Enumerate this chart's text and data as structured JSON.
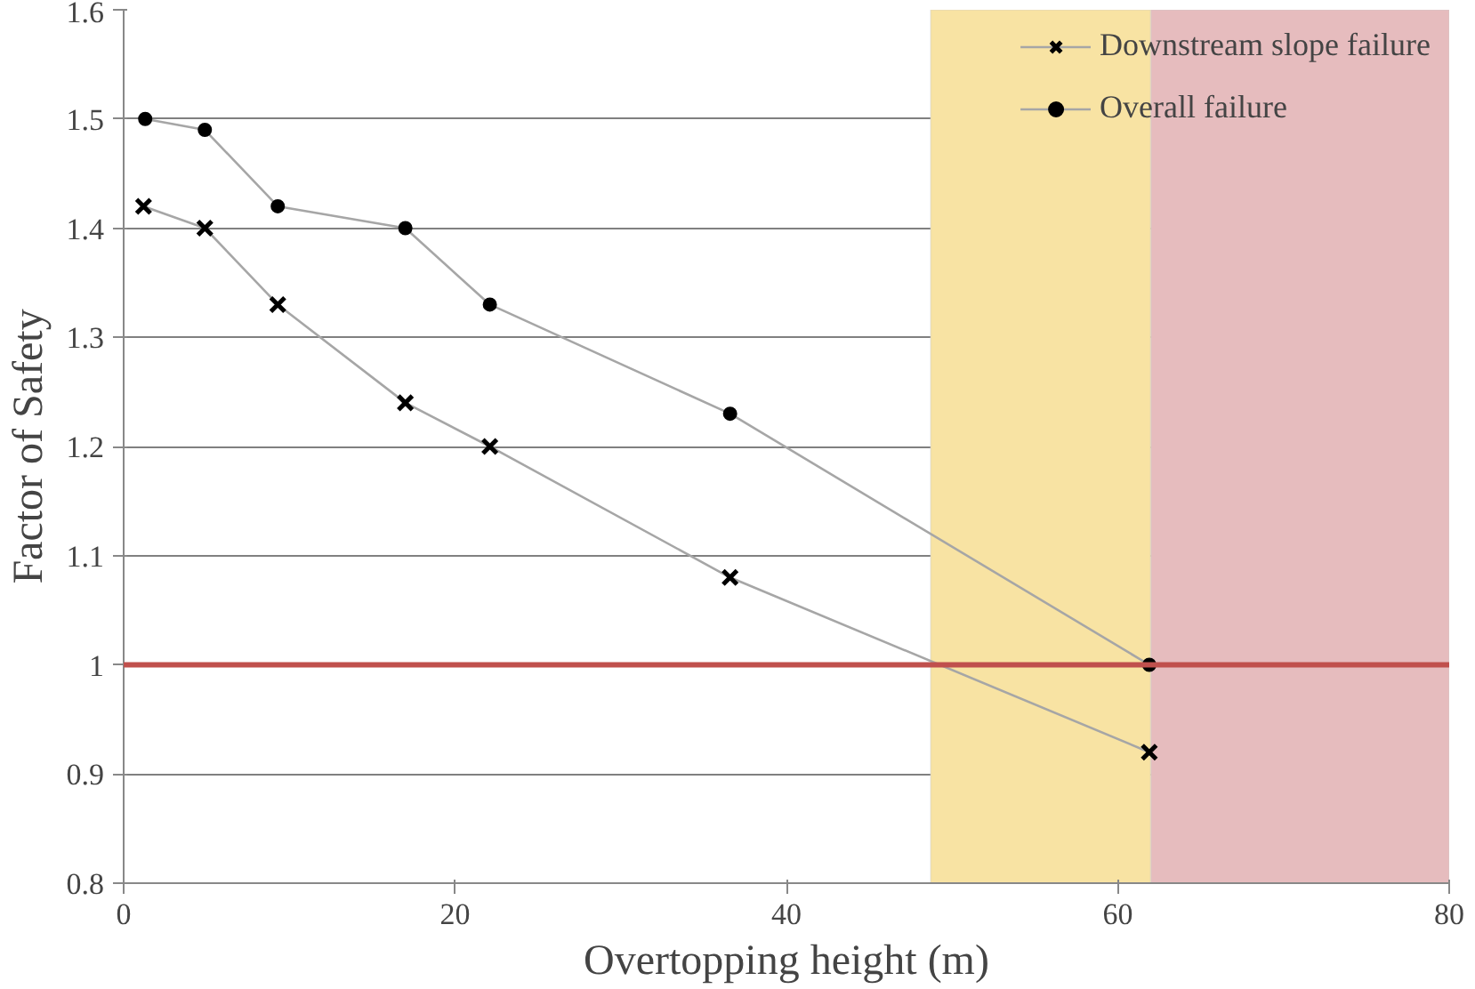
{
  "chart_data": {
    "type": "line",
    "xlabel": "Overtopping height (m)",
    "ylabel": "Factor of Safety",
    "xlim": [
      0,
      80
    ],
    "xticks": [
      0,
      20,
      40,
      60,
      80
    ],
    "ylim": [
      0.8,
      1.6
    ],
    "yticks": [
      0.8,
      0.9,
      1,
      1.1,
      1.2,
      1.3,
      1.4,
      1.5,
      1.6
    ],
    "grid": "y",
    "legend": "top right",
    "line_style": "solid",
    "series": [
      {
        "name": "Downstream slope failure",
        "color": "#a6a6a6",
        "marker": "cross",
        "x": [
          1.2,
          4.9,
          9.3,
          17,
          22.1,
          36.6,
          61.9
        ],
        "values": [
          1.42,
          1.4,
          1.33,
          1.24,
          1.2,
          1.08,
          0.92
        ]
      },
      {
        "name": "Overall failure",
        "color": "#a6a6a6",
        "marker": "circle",
        "x": [
          1.3,
          4.9,
          9.3,
          17,
          22.1,
          36.6,
          61.9
        ],
        "values": [
          1.5,
          1.49,
          1.42,
          1.4,
          1.33,
          1.23,
          1.0
        ]
      }
    ],
    "ref_lines": [
      {
        "axis": "y",
        "value": 1,
        "color": "#c0504d"
      }
    ],
    "bands": [
      {
        "axis": "x",
        "from": 48.7,
        "to": 62,
        "color": "#f8e3a3"
      },
      {
        "axis": "x",
        "from": 62,
        "to": 80,
        "color": "#e6bcbe"
      }
    ]
  }
}
